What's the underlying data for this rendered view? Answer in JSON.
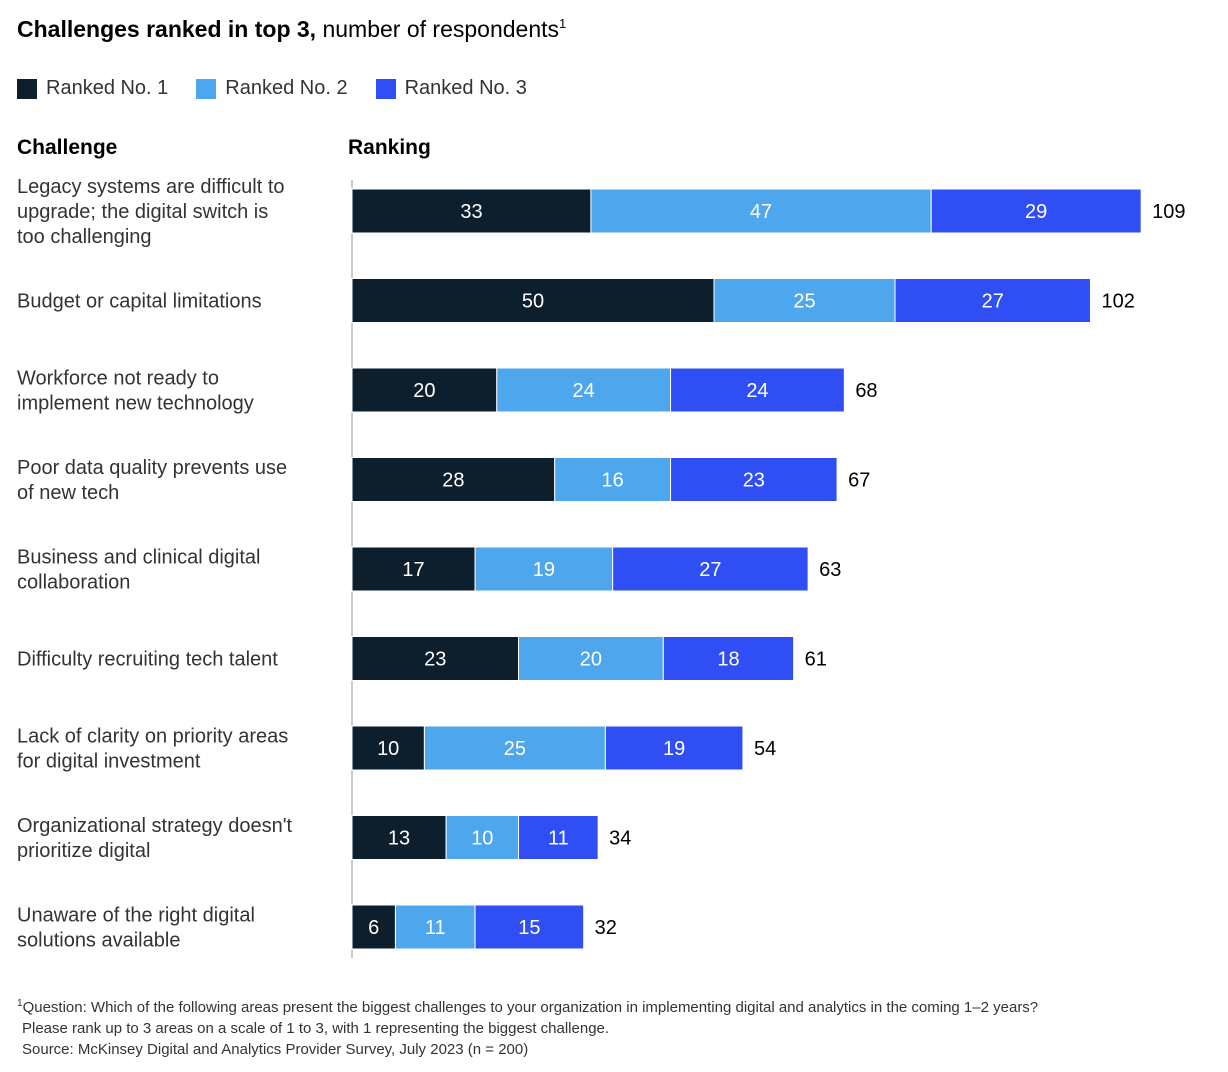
{
  "title": {
    "bold": "Challenges ranked in top 3,",
    "normal": " number of respondents",
    "footnote_mark": "1"
  },
  "legend": {
    "items": [
      {
        "label": "Ranked No. 1",
        "color": "#0d1e2c"
      },
      {
        "label": "Ranked No. 2",
        "color": "#4ea6ec"
      },
      {
        "label": "Ranked No. 3",
        "color": "#2f4ff5"
      }
    ]
  },
  "headers": {
    "challenge": "Challenge",
    "ranking": "Ranking"
  },
  "chart_data": {
    "type": "bar",
    "orientation": "horizontal",
    "stacked": true,
    "title": "Challenges ranked in top 3, number of respondents",
    "categories": [
      [
        "Legacy systems are difficult to",
        "upgrade; the digital switch is",
        "too challenging"
      ],
      [
        "Budget or capital limitations"
      ],
      [
        "Workforce not ready to",
        "implement new technology"
      ],
      [
        "Poor data quality prevents use",
        "of new tech"
      ],
      [
        "Business and clinical digital",
        "collaboration"
      ],
      [
        "Difficulty recruiting tech talent"
      ],
      [
        "Lack of clarity on priority areas",
        "for digital investment"
      ],
      [
        "Organizational strategy doesn't",
        "prioritize digital"
      ],
      [
        "Unaware of the right digital",
        "solutions available"
      ]
    ],
    "series": [
      {
        "name": "Ranked No. 1",
        "color": "#0d1e2c",
        "values": [
          33,
          50,
          20,
          28,
          17,
          23,
          10,
          13,
          6
        ]
      },
      {
        "name": "Ranked No. 2",
        "color": "#4ea6ec",
        "values": [
          47,
          25,
          24,
          16,
          19,
          20,
          25,
          10,
          11
        ]
      },
      {
        "name": "Ranked No. 3",
        "color": "#2f4ff5",
        "values": [
          29,
          27,
          24,
          23,
          27,
          18,
          19,
          11,
          15
        ]
      }
    ],
    "totals": [
      109,
      102,
      68,
      67,
      63,
      61,
      54,
      34,
      32
    ],
    "xlim": [
      0,
      109
    ],
    "grid": false,
    "legend_position": "top-left"
  },
  "footnote": {
    "mark": "1",
    "lines": [
      "Question: Which of the following areas present the biggest challenges to your organization in implementing digital and analytics in the coming 1–2 years?",
      "Please rank up to 3 areas on a scale of 1 to 3, with 1 representing the biggest challenge.",
      "Source: McKinsey Digital and Analytics Provider Survey, July 2023 (n = 200)"
    ]
  }
}
